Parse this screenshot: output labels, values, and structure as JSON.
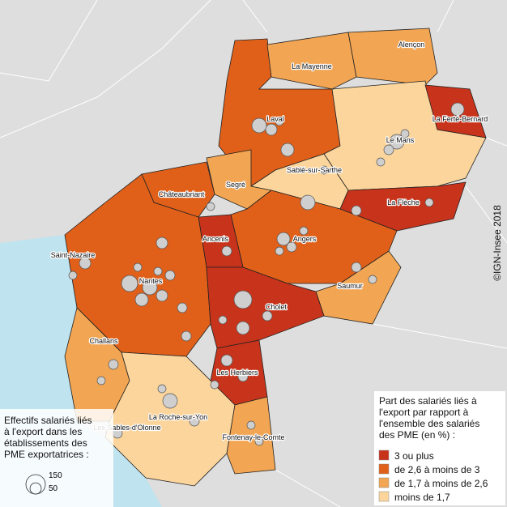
{
  "places": [
    "Alençon",
    "La Mayenne",
    "Laval",
    "La Ferté-Bernard",
    "Le Mans",
    "Sablé-sur-Sarthe",
    "Châteaubriant",
    "Segré",
    "La Flèche",
    "Ancenis",
    "Angers",
    "Saint-Nazaire",
    "Nantes",
    "Saumur",
    "Cholet",
    "Challans",
    "Les Herbiers",
    "La Roche-sur-Yon",
    "Les Sables-d'Olonne",
    "Fontenay-le-Comte"
  ],
  "credit": "©IGN-Insee 2018",
  "color_legend": {
    "title_lines": [
      "Part des salariés liés à",
      "l'export par rapport à",
      "l'ensemble des salariés",
      "des PME (en %) :"
    ],
    "classes": [
      {
        "label": "3 ou plus",
        "color": "#c8331b"
      },
      {
        "label": "de 2,6 à moins de 3",
        "color": "#e0601a"
      },
      {
        "label": "de 1,7 à moins de 2,6",
        "color": "#f2a552"
      },
      {
        "label": "moins de 1,7",
        "color": "#fbd59c"
      }
    ]
  },
  "size_legend": {
    "title_lines": [
      "Effectifs salariés liés",
      "à l'export dans les",
      "établissements des",
      "PME exportatrices :"
    ],
    "values": [
      150,
      50
    ]
  }
}
